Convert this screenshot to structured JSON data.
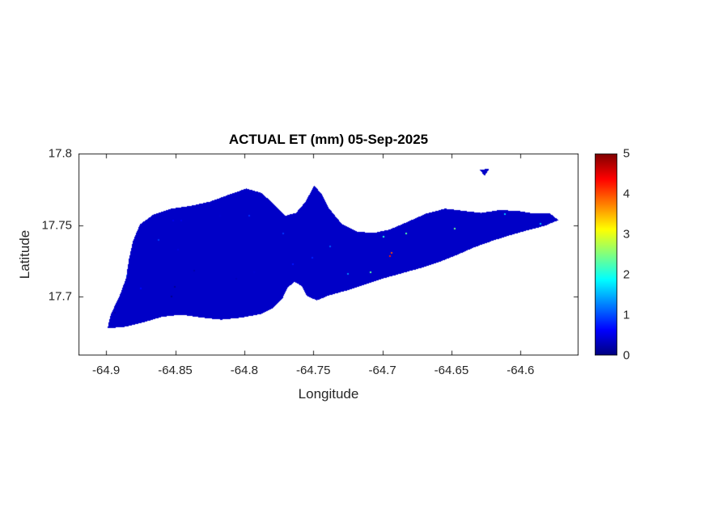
{
  "page": {
    "background": "#ffffff"
  },
  "chart_data": {
    "type": "heatmap",
    "title": "ACTUAL ET (mm) 05-Sep-2025",
    "xlabel": "Longitude",
    "ylabel": "Latitude",
    "xlim": [
      -64.92,
      -64.558
    ],
    "ylim": [
      17.659,
      17.8
    ],
    "xticks": [
      -64.9,
      -64.85,
      -64.8,
      -64.75,
      -64.7,
      -64.65,
      -64.6
    ],
    "yticks": [
      17.7,
      17.75,
      17.8
    ],
    "grid": false,
    "legend": false,
    "colormap": "jet",
    "clim": [
      0,
      5
    ],
    "colorbar_ticks": [
      0,
      1,
      2,
      3,
      4,
      5
    ],
    "colorbar_position": "right",
    "value_units": "mm",
    "axis_color": "#262626",
    "title_color": "#000000",
    "background_color": "#ffffff",
    "island_outline": [
      [
        -64.899,
        17.678
      ],
      [
        -64.8965,
        17.688
      ],
      [
        -64.8905,
        17.7
      ],
      [
        -64.8855,
        17.713
      ],
      [
        -64.8835,
        17.726
      ],
      [
        -64.8805,
        17.739
      ],
      [
        -64.8755,
        17.7505
      ],
      [
        -64.8655,
        17.7575
      ],
      [
        -64.8525,
        17.7615
      ],
      [
        -64.8385,
        17.7635
      ],
      [
        -64.8245,
        17.7665
      ],
      [
        -64.8105,
        17.7715
      ],
      [
        -64.7985,
        17.7755
      ],
      [
        -64.7875,
        17.7725
      ],
      [
        -64.7785,
        17.7645
      ],
      [
        -64.7705,
        17.7565
      ],
      [
        -64.7625,
        17.7585
      ],
      [
        -64.7555,
        17.7665
      ],
      [
        -64.7495,
        17.7775
      ],
      [
        -64.7445,
        17.7725
      ],
      [
        -64.7385,
        17.7615
      ],
      [
        -64.7295,
        17.751
      ],
      [
        -64.7185,
        17.7455
      ],
      [
        -64.7065,
        17.7445
      ],
      [
        -64.6945,
        17.747
      ],
      [
        -64.6825,
        17.752
      ],
      [
        -64.6685,
        17.758
      ],
      [
        -64.6545,
        17.7615
      ],
      [
        -64.6415,
        17.76
      ],
      [
        -64.6285,
        17.7585
      ],
      [
        -64.6155,
        17.7605
      ],
      [
        -64.6025,
        17.76
      ],
      [
        -64.5895,
        17.758
      ],
      [
        -64.5785,
        17.758
      ],
      [
        -64.5725,
        17.7535
      ],
      [
        -64.5825,
        17.7495
      ],
      [
        -64.5945,
        17.7465
      ],
      [
        -64.6075,
        17.743
      ],
      [
        -64.6205,
        17.739
      ],
      [
        -64.6335,
        17.7345
      ],
      [
        -64.6465,
        17.729
      ],
      [
        -64.6595,
        17.724
      ],
      [
        -64.6725,
        17.72
      ],
      [
        -64.6855,
        17.7165
      ],
      [
        -64.6985,
        17.713
      ],
      [
        -64.7115,
        17.709
      ],
      [
        -64.7235,
        17.705
      ],
      [
        -64.7385,
        17.701
      ],
      [
        -64.7475,
        17.6975
      ],
      [
        -64.7545,
        17.7005
      ],
      [
        -64.7585,
        17.7075
      ],
      [
        -64.7635,
        17.7105
      ],
      [
        -64.7685,
        17.7065
      ],
      [
        -64.7725,
        17.6985
      ],
      [
        -64.7795,
        17.692
      ],
      [
        -64.7875,
        17.688
      ],
      [
        -64.8015,
        17.6855
      ],
      [
        -64.8165,
        17.684
      ],
      [
        -64.8315,
        17.6855
      ],
      [
        -64.8455,
        17.6875
      ],
      [
        -64.8595,
        17.686
      ],
      [
        -64.8735,
        17.682
      ],
      [
        -64.8865,
        17.679
      ]
    ],
    "islets": [
      [
        [
          -64.6295,
          17.7885
        ],
        [
          -64.6225,
          17.7895
        ],
        [
          -64.626,
          17.7845
        ]
      ]
    ],
    "field": {
      "base": 0.7,
      "noise": 0.9,
      "speckle_hi": 1.25,
      "blobs": [
        {
          "lon": -64.66,
          "lat": 17.74,
          "sx": 0.055,
          "sy": 0.028,
          "amp": 1.7
        },
        {
          "lon": -64.683,
          "lat": 17.722,
          "sx": 0.014,
          "sy": 0.009,
          "amp": 2.6
        },
        {
          "lon": -64.7,
          "lat": 17.725,
          "sx": 0.018,
          "sy": 0.01,
          "amp": 1.2
        },
        {
          "lon": -64.655,
          "lat": 17.73,
          "sx": 0.02,
          "sy": 0.012,
          "amp": 1.3
        },
        {
          "lon": -64.878,
          "lat": 17.728,
          "sx": 0.014,
          "sy": 0.018,
          "amp": 1.4
        },
        {
          "lon": -64.86,
          "lat": 17.698,
          "sx": 0.025,
          "sy": 0.015,
          "amp": -0.35
        },
        {
          "lon": -64.79,
          "lat": 17.752,
          "sx": 0.04,
          "sy": 0.015,
          "amp": 0.55
        },
        {
          "lon": -64.765,
          "lat": 17.707,
          "sx": 0.012,
          "sy": 0.008,
          "amp": 1.2
        },
        {
          "lon": -64.74,
          "lat": 17.703,
          "sx": 0.012,
          "sy": 0.008,
          "amp": 0.9
        },
        {
          "lon": -64.575,
          "lat": 17.754,
          "sx": 0.012,
          "sy": 0.008,
          "amp": 0.6
        },
        {
          "lon": -64.61,
          "lat": 17.752,
          "sx": 0.025,
          "sy": 0.01,
          "amp": 0.5
        },
        {
          "lon": -64.626,
          "lat": 17.787,
          "sx": 0.006,
          "sy": 0.004,
          "amp": 1.6
        }
      ]
    }
  }
}
